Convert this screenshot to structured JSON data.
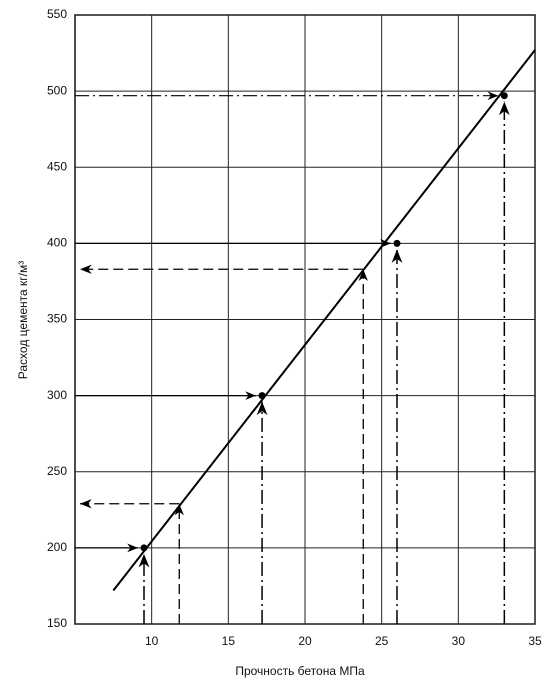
{
  "chart_data": {
    "type": "line",
    "xlabel": "Прочность бетона  МПа",
    "ylabel": "Расход цемента  кг/м³",
    "xlim": [
      5,
      35
    ],
    "xticks": [
      10,
      15,
      20,
      25,
      30,
      35
    ],
    "ylim": [
      150,
      550
    ],
    "yticks": [
      150,
      200,
      250,
      300,
      350,
      400,
      450,
      500,
      550
    ],
    "grid": true,
    "series": [
      {
        "color": "#000000",
        "x": [
          7.5,
          35
        ],
        "values": [
          172,
          527
        ]
      }
    ],
    "points": {
      "color": "#000000",
      "x": [
        9.5,
        17.2,
        26,
        33
      ],
      "values": [
        200,
        300,
        400,
        497
      ]
    },
    "guides": {
      "x": [
        11.8,
        23.8
      ],
      "values": [
        229,
        383
      ]
    }
  }
}
